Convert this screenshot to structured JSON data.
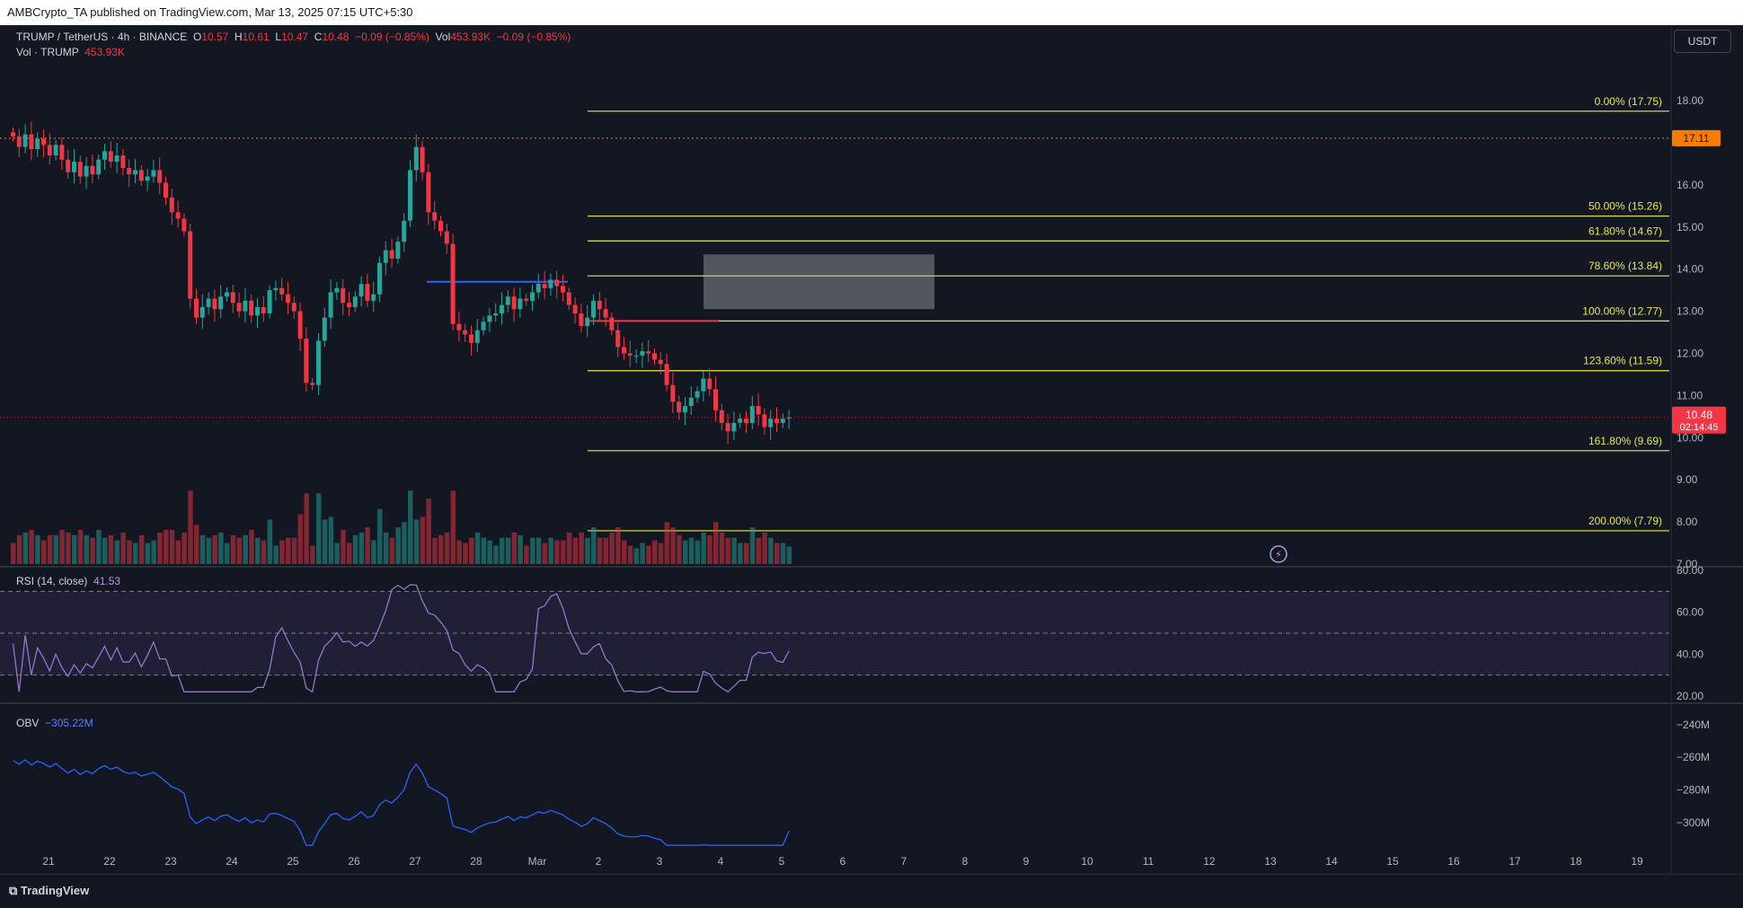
{
  "header": {
    "published": "AMBCrypto_TA published on TradingView.com, Mar 13, 2025 07:15 UTC+5:30"
  },
  "legend": {
    "symbol": "TRUMP / TetherUS · 4h · BINANCE",
    "open_label": "O",
    "open": "10.57",
    "high_label": "H",
    "high": "10.61",
    "low_label": "L",
    "low": "10.47",
    "close_label": "C",
    "close": "10.48",
    "change": "−0.09 (−0.85%)",
    "vol_label": "Vol",
    "vol": "453.93K",
    "vol_change": "−0.09 (−0.85%)",
    "vol_series": "Vol · TRUMP",
    "vol_series_value": "453.93K",
    "rsi_label": "RSI (14, close)",
    "rsi_value": "41.53",
    "obv_label": "OBV",
    "obv_value": "−305.22M"
  },
  "currency_button": "USDT",
  "footer": {
    "brand": "TradingView"
  },
  "colors": {
    "background": "#131722",
    "up": "#26a69a",
    "down": "#f23645",
    "fib": "#e8e851",
    "rsi": "#9575cd",
    "obv": "#2962ff",
    "price_line": "#f57c00"
  },
  "chart_data": [
    {
      "type": "candlestick",
      "title": "TRUMP / TetherUS · 4h · BINANCE",
      "ylim": [
        7.0,
        18.3
      ],
      "y_ticks": [
        "18.00",
        "17.00",
        "16.00",
        "15.00",
        "14.00",
        "13.00",
        "12.00",
        "11.00",
        "10.00",
        "9.00",
        "8.00",
        "7.00"
      ],
      "x_ticks": [
        "21",
        "22",
        "23",
        "24",
        "25",
        "26",
        "27",
        "28",
        "Mar",
        "2",
        "3",
        "4",
        "5",
        "6",
        "7",
        "8",
        "9",
        "10",
        "11",
        "12",
        "13",
        "14",
        "15",
        "16",
        "17",
        "18",
        "19"
      ],
      "last_price": "10.48",
      "countdown": "02:14:45",
      "reference_price": "17.11",
      "fib_levels": [
        {
          "label": "0.00% (17.75)",
          "value": 17.75
        },
        {
          "label": "50.00% (15.26)",
          "value": 15.26
        },
        {
          "label": "61.80% (14.67)",
          "value": 14.67
        },
        {
          "label": "78.60% (13.84)",
          "value": 13.84
        },
        {
          "label": "100.00% (12.77)",
          "value": 12.77
        },
        {
          "label": "123.60% (11.59)",
          "value": 11.59
        },
        {
          "label": "161.80% (9.69)",
          "value": 9.69
        },
        {
          "label": "200.00% (7.79)",
          "value": 7.79
        }
      ],
      "zone": {
        "from_date": "Mar 3.7",
        "to_date": "Mar 7.5",
        "low": 13.05,
        "high": 14.35
      },
      "closes": [
        17.15,
        16.9,
        17.2,
        16.85,
        17.1,
        16.95,
        16.7,
        16.95,
        16.6,
        16.3,
        16.55,
        16.2,
        16.45,
        16.25,
        16.6,
        16.8,
        16.55,
        16.7,
        16.4,
        16.25,
        16.35,
        16.1,
        16.2,
        16.35,
        16.05,
        15.7,
        15.35,
        15.2,
        14.9,
        13.3,
        12.85,
        13.1,
        13.3,
        13.05,
        13.35,
        13.45,
        13.2,
        13.0,
        13.25,
        12.9,
        13.1,
        12.95,
        13.5,
        13.55,
        13.4,
        13.2,
        13.0,
        12.35,
        11.3,
        11.25,
        12.3,
        12.85,
        13.45,
        13.55,
        13.2,
        13.1,
        13.35,
        13.65,
        13.25,
        13.4,
        14.15,
        14.45,
        14.25,
        14.65,
        15.15,
        16.35,
        16.9,
        16.3,
        15.35,
        15.15,
        14.9,
        14.6,
        12.7,
        12.55,
        12.45,
        12.25,
        12.55,
        12.75,
        12.9,
        12.95,
        13.15,
        13.35,
        13.05,
        13.3,
        13.25,
        13.45,
        13.65,
        13.55,
        13.75,
        13.6,
        13.45,
        13.15,
        12.95,
        12.65,
        12.85,
        13.25,
        13.05,
        12.85,
        12.55,
        12.15,
        12.0,
        11.95,
        11.95,
        12.05,
        12.0,
        11.85,
        11.75,
        11.25,
        10.85,
        10.6,
        10.75,
        10.95,
        11.1,
        11.4,
        11.15,
        10.65,
        10.35,
        10.15,
        10.35,
        10.45,
        10.35,
        10.75,
        10.55,
        10.25,
        10.45,
        10.35,
        10.45,
        10.48
      ],
      "volume_note": "Vol · TRUMP 453.93K"
    },
    {
      "type": "line",
      "title": "RSI (14, close)",
      "ylim": [
        20,
        80
      ],
      "y_ticks": [
        "80.00",
        "60.00",
        "40.00",
        "20.00"
      ],
      "bands": [
        30,
        50,
        70
      ],
      "latest": 41.53
    },
    {
      "type": "line",
      "title": "OBV",
      "y_ticks": [
        "−240M",
        "−260M",
        "−280M",
        "−300M"
      ],
      "ylim_millions": [
        -315,
        -228
      ],
      "latest_millions": -305.22
    }
  ]
}
